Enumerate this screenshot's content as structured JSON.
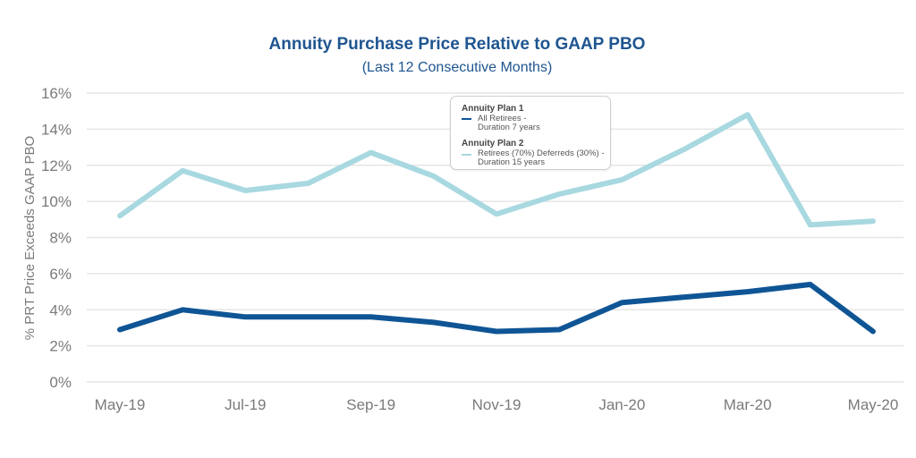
{
  "chart_data": {
    "type": "line",
    "title": "Annuity Purchase Price Relative to GAAP PBO",
    "subtitle": "(Last 12 Consecutive Months)",
    "xlabel": "",
    "ylabel": "% PRT Price Exceeds GAAP PBO",
    "ylim": [
      0,
      16
    ],
    "yticks": [
      "0%",
      "2%",
      "4%",
      "6%",
      "8%",
      "10%",
      "12%",
      "14%",
      "16%"
    ],
    "ytick_values": [
      0,
      2,
      4,
      6,
      8,
      10,
      12,
      14,
      16
    ],
    "x": [
      "May-19",
      "Jun-19",
      "Jul-19",
      "Aug-19",
      "Sep-19",
      "Oct-19",
      "Nov-19",
      "Dec-19",
      "Jan-20",
      "Feb-20",
      "Mar-20",
      "Apr-20",
      "May-20"
    ],
    "xtick_labels": [
      "May-19",
      "Jul-19",
      "Sep-19",
      "Nov-19",
      "Jan-20",
      "Mar-20",
      "May-20"
    ],
    "xtick_indices": [
      0,
      2,
      4,
      6,
      8,
      10,
      12
    ],
    "grid": true,
    "legend_position": "top-center",
    "series": [
      {
        "group": "Annuity Plan 1",
        "name": "All Retirees - Duration 7 years",
        "name_lines": [
          "All Retirees -",
          "Duration 7 years"
        ],
        "color": "#0f5595",
        "values": [
          2.9,
          4.0,
          3.6,
          3.6,
          3.6,
          3.3,
          2.8,
          2.9,
          4.4,
          4.7,
          5.0,
          5.4,
          2.8
        ]
      },
      {
        "group": "Annuity Plan 2",
        "name": "Retirees (70%) Deferreds (30%) - Duration 15 years",
        "name_lines": [
          "Retirees (70%) Deferreds (30%) -",
          "Duration 15 years"
        ],
        "color": "#a8d8e0",
        "values": [
          9.2,
          11.7,
          10.6,
          11.0,
          12.7,
          11.4,
          9.3,
          10.4,
          11.2,
          12.9,
          14.8,
          8.7,
          8.9
        ]
      }
    ]
  }
}
